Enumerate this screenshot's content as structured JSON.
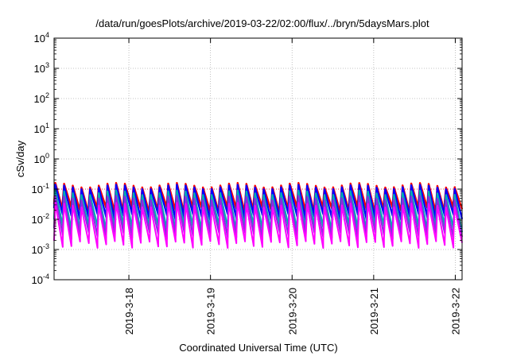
{
  "chart_data": {
    "type": "line",
    "title": "/data/run/goesPlots/archive/2019-03-22/02:00/flux/../bryn/5daysMars.plot",
    "xlabel": "Coordinated Universal Time (UTC)",
    "ylabel": "cSv/day",
    "yscale": "log",
    "ylim": [
      0.0001,
      10000
    ],
    "xlim": [
      "2019-03-17 02:00",
      "2019-03-22 02:00"
    ],
    "grid": true,
    "y_ticks": [
      {
        "base": "10",
        "exp": "4"
      },
      {
        "base": "10",
        "exp": "3"
      },
      {
        "base": "10",
        "exp": "2"
      },
      {
        "base": "10",
        "exp": "1"
      },
      {
        "base": "10",
        "exp": "0"
      },
      {
        "base": "10",
        "exp": "-1"
      },
      {
        "base": "10",
        "exp": "-2"
      },
      {
        "base": "10",
        "exp": "-3"
      },
      {
        "base": "10",
        "exp": "-4"
      }
    ],
    "x_ticks": [
      "2019-3-18",
      "2019-3-19",
      "2019-3-20",
      "2019-3-21",
      "2019-3-22"
    ],
    "series": [
      {
        "color": "#ff0000",
        "peak": 0.16,
        "trough": 0.02
      },
      {
        "color": "#0000ff",
        "peak": 0.14,
        "trough": 0.012
      },
      {
        "color": "#00b0b0",
        "peak": 0.09,
        "trough": 0.005
      },
      {
        "color": "#8a2be2",
        "peak": 0.06,
        "trough": 0.003
      },
      {
        "color": "#ff00ff",
        "peak": 0.035,
        "trough": 0.0015
      }
    ],
    "reference_line": {
      "color": "#ff0000",
      "value": 0.1
    }
  }
}
